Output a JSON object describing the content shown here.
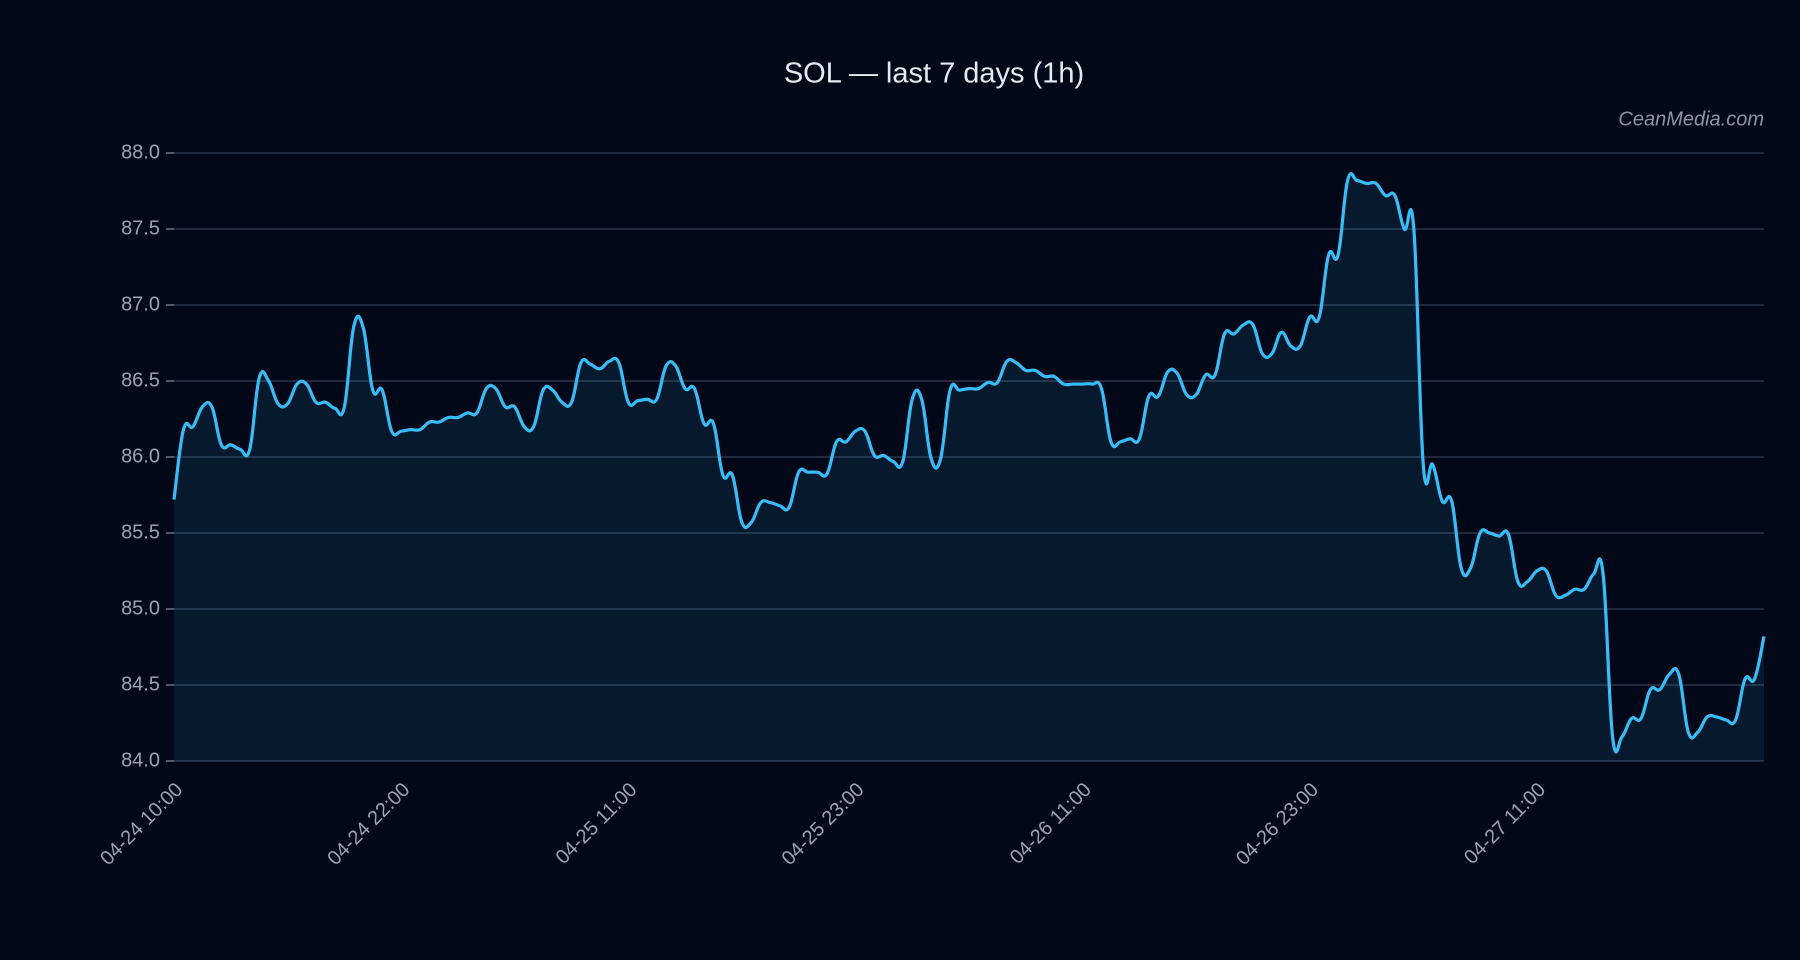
{
  "chart_data": {
    "type": "line",
    "title": "SOL — last 7 days (1h)",
    "watermark": "CeanMedia.com",
    "color": "#38bdf8",
    "grid": true,
    "categories": [
      "04-24 10:00",
      null,
      null,
      null,
      null,
      null,
      null,
      null,
      null,
      null,
      null,
      null,
      null,
      null,
      null,
      null,
      null,
      null,
      null,
      null,
      null,
      null,
      null,
      null,
      "04-24 22:00",
      null,
      null,
      null,
      null,
      null,
      null,
      null,
      null,
      null,
      null,
      null,
      null,
      null,
      null,
      null,
      null,
      null,
      null,
      null,
      null,
      null,
      null,
      null,
      "04-25 11:00",
      null,
      null,
      null,
      null,
      null,
      null,
      null,
      null,
      null,
      null,
      null,
      null,
      null,
      null,
      null,
      null,
      null,
      null,
      null,
      null,
      null,
      null,
      null,
      "04-25 23:00",
      null,
      null,
      null,
      null,
      null,
      null,
      null,
      null,
      null,
      null,
      null,
      null,
      null,
      null,
      null,
      null,
      null,
      null,
      null,
      null,
      null,
      null,
      null,
      "04-26 11:00",
      null,
      null,
      null,
      null,
      null,
      null,
      null,
      null,
      null,
      null,
      null,
      null,
      null,
      null,
      null,
      null,
      null,
      null,
      null,
      null,
      null,
      null,
      null,
      "04-26 23:00",
      null,
      null,
      null,
      null,
      null,
      null,
      null,
      null,
      null,
      null,
      null,
      null,
      null,
      null,
      null,
      null,
      null,
      null,
      null,
      null,
      null,
      null,
      null,
      "04-27 11:00",
      null,
      null,
      null,
      null,
      null,
      null,
      null,
      null,
      null,
      null,
      null,
      null,
      null,
      null,
      null,
      null,
      null,
      null,
      null,
      null,
      null,
      null,
      null,
      null
    ],
    "values": [
      85.72,
      86.18,
      86.2,
      86.33,
      86.33,
      86.08,
      86.08,
      86.05,
      86.05,
      86.52,
      86.5,
      86.35,
      86.35,
      86.48,
      86.48,
      86.36,
      86.36,
      86.32,
      86.33,
      86.86,
      86.85,
      86.44,
      86.44,
      86.17,
      86.17,
      86.18,
      86.18,
      86.23,
      86.23,
      86.26,
      86.26,
      86.29,
      86.29,
      86.45,
      86.45,
      86.33,
      86.33,
      86.2,
      86.2,
      86.44,
      86.44,
      86.36,
      86.36,
      86.62,
      86.61,
      86.58,
      86.63,
      86.62,
      86.36,
      86.37,
      86.38,
      86.38,
      86.6,
      86.6,
      86.45,
      86.45,
      86.22,
      86.22,
      85.88,
      85.88,
      85.57,
      85.57,
      85.7,
      85.7,
      85.68,
      85.67,
      85.9,
      85.9,
      85.9,
      85.89,
      86.1,
      86.1,
      86.17,
      86.17,
      86.01,
      86.01,
      85.97,
      85.97,
      86.38,
      86.38,
      85.99,
      85.99,
      86.44,
      86.44,
      86.45,
      86.45,
      86.49,
      86.49,
      86.63,
      86.62,
      86.57,
      86.57,
      86.53,
      86.53,
      86.48,
      86.48,
      86.48,
      86.48,
      86.45,
      86.1,
      86.1,
      86.12,
      86.12,
      86.4,
      86.4,
      86.56,
      86.55,
      86.41,
      86.41,
      86.54,
      86.54,
      86.81,
      86.81,
      86.87,
      86.87,
      86.68,
      86.68,
      86.82,
      86.73,
      86.73,
      86.92,
      86.92,
      87.33,
      87.33,
      87.82,
      87.82,
      87.8,
      87.8,
      87.72,
      87.72,
      87.5,
      87.5,
      85.95,
      85.95,
      85.71,
      85.71,
      85.27,
      85.27,
      85.5,
      85.5,
      85.48,
      85.49,
      85.18,
      85.18,
      85.25,
      85.25,
      85.09,
      85.09,
      85.13,
      85.13,
      85.23,
      85.23,
      84.16,
      84.16,
      84.28,
      84.28,
      84.47,
      84.47,
      84.57,
      84.57,
      84.19,
      84.19,
      84.29,
      84.29,
      84.27,
      84.27,
      84.54,
      84.54,
      84.82
    ],
    "ylim": [
      84,
      88
    ],
    "yticks": [
      {
        "value": 84,
        "label": "84.0"
      },
      84.5,
      {
        "value": 85,
        "label": "85.0"
      },
      85.5,
      {
        "value": 86,
        "label": "86.0"
      },
      86.5,
      {
        "value": 87,
        "label": "87.0"
      },
      87.5,
      {
        "value": 88,
        "label": "88.0"
      }
    ]
  }
}
